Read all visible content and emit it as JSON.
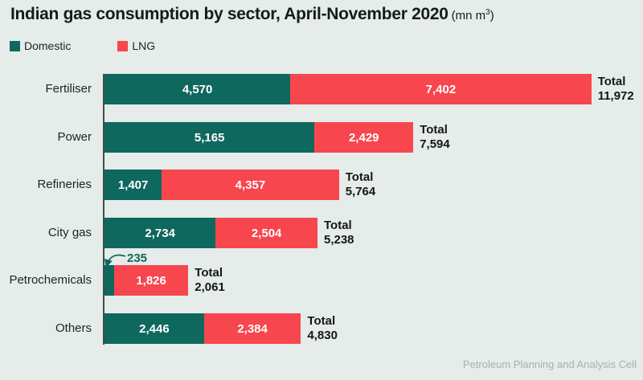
{
  "title": {
    "main": "Indian gas consumption by sector, April-November 2020",
    "unit_prefix": "(mn m",
    "unit_sup": "3",
    "unit_suffix": ")"
  },
  "legend": [
    {
      "label": "Domestic",
      "color": "#0e685e"
    },
    {
      "label": "LNG",
      "color": "#f7464e"
    }
  ],
  "source": "Petroleum Planning and Analysis Cell",
  "chart_data": {
    "type": "bar",
    "orientation": "horizontal",
    "stacked": true,
    "title": "Indian gas consumption by sector, April-November 2020 (mn m³)",
    "categories": [
      "Fertiliser",
      "Power",
      "Refineries",
      "City gas",
      "Petrochemicals",
      "Others"
    ],
    "series": [
      {
        "name": "Domestic",
        "color": "#0e685e",
        "values": [
          4570,
          5165,
          1407,
          2734,
          235,
          2446
        ]
      },
      {
        "name": "LNG",
        "color": "#f7464e",
        "values": [
          7402,
          2429,
          4357,
          2504,
          1826,
          2384
        ]
      }
    ],
    "totals": [
      11972,
      7594,
      5764,
      5238,
      2061,
      4830
    ],
    "total_word": "Total",
    "annotation": {
      "category": "Petrochemicals",
      "series": "Domestic",
      "value": 235
    },
    "legend_position": "top-left",
    "grid": false,
    "xlim": [
      0,
      12500
    ]
  }
}
